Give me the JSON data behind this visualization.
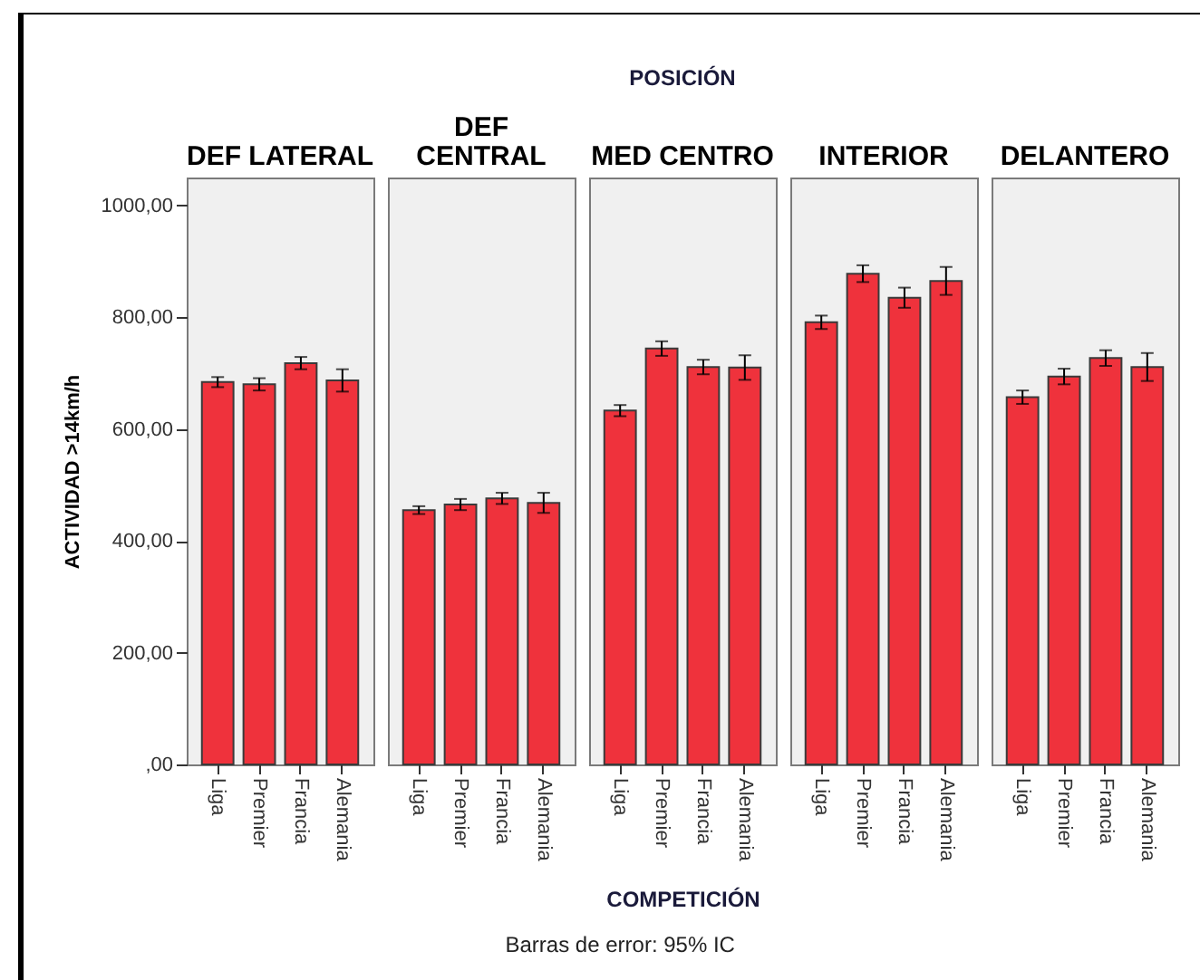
{
  "chart_data": [
    {
      "type": "bar",
      "title": "DEF LATERAL",
      "ylabel": "ACTIVIDAD >14km/h",
      "categories": [
        "Liga",
        "Premier",
        "Francia",
        "Alemania"
      ],
      "values": [
        684,
        680,
        718,
        687
      ],
      "errors": [
        9,
        11,
        11,
        20
      ],
      "color": "#ef323c",
      "ylim": [
        0,
        1050
      ],
      "yticks": [
        {
          "value": 0,
          "label": ",00"
        },
        {
          "value": 200,
          "label": "200,00"
        },
        {
          "value": 400,
          "label": "400,00"
        },
        {
          "value": 600,
          "label": "600,00"
        },
        {
          "value": 800,
          "label": "800,00"
        },
        {
          "value": 1000,
          "label": "1000,00"
        }
      ]
    },
    {
      "type": "bar",
      "title": "DEF CENTRAL",
      "categories": [
        "Liga",
        "Premier",
        "Francia",
        "Alemania"
      ],
      "values": [
        455,
        465,
        476,
        468
      ],
      "errors": [
        7,
        10,
        10,
        18
      ],
      "color": "#ef323c",
      "ylim": [
        0,
        1050
      ],
      "tick_labels": "x"
    },
    {
      "type": "bar",
      "title": "MED CENTRO",
      "xlabel": "COMPETICIÓN",
      "annotations": [
        "POSICIÓN",
        "Barras de error: 95% IC"
      ],
      "categories": [
        "Liga",
        "Premier",
        "Francia",
        "Alemania"
      ],
      "values": [
        633,
        744,
        711,
        710
      ],
      "errors": [
        10,
        13,
        13,
        22
      ],
      "color": "#ef323c",
      "ylim": [
        0,
        1050
      ],
      "tick_labels": "x"
    },
    {
      "type": "bar",
      "title": "INTERIOR",
      "categories": [
        "Liga",
        "Premier",
        "Francia",
        "Alemania"
      ],
      "values": [
        791,
        878,
        835,
        865
      ],
      "errors": [
        12,
        15,
        18,
        25
      ],
      "color": "#ef323c",
      "ylim": [
        0,
        1050
      ],
      "tick_labels": "x"
    },
    {
      "type": "bar",
      "title": "DELANTERO",
      "categories": [
        "Liga",
        "Premier",
        "Francia",
        "Alemania"
      ],
      "values": [
        657,
        694,
        727,
        711
      ],
      "errors": [
        12,
        14,
        14,
        25
      ],
      "color": "#ef323c",
      "ylim": [
        0,
        1050
      ],
      "tick_labels": "x"
    }
  ]
}
